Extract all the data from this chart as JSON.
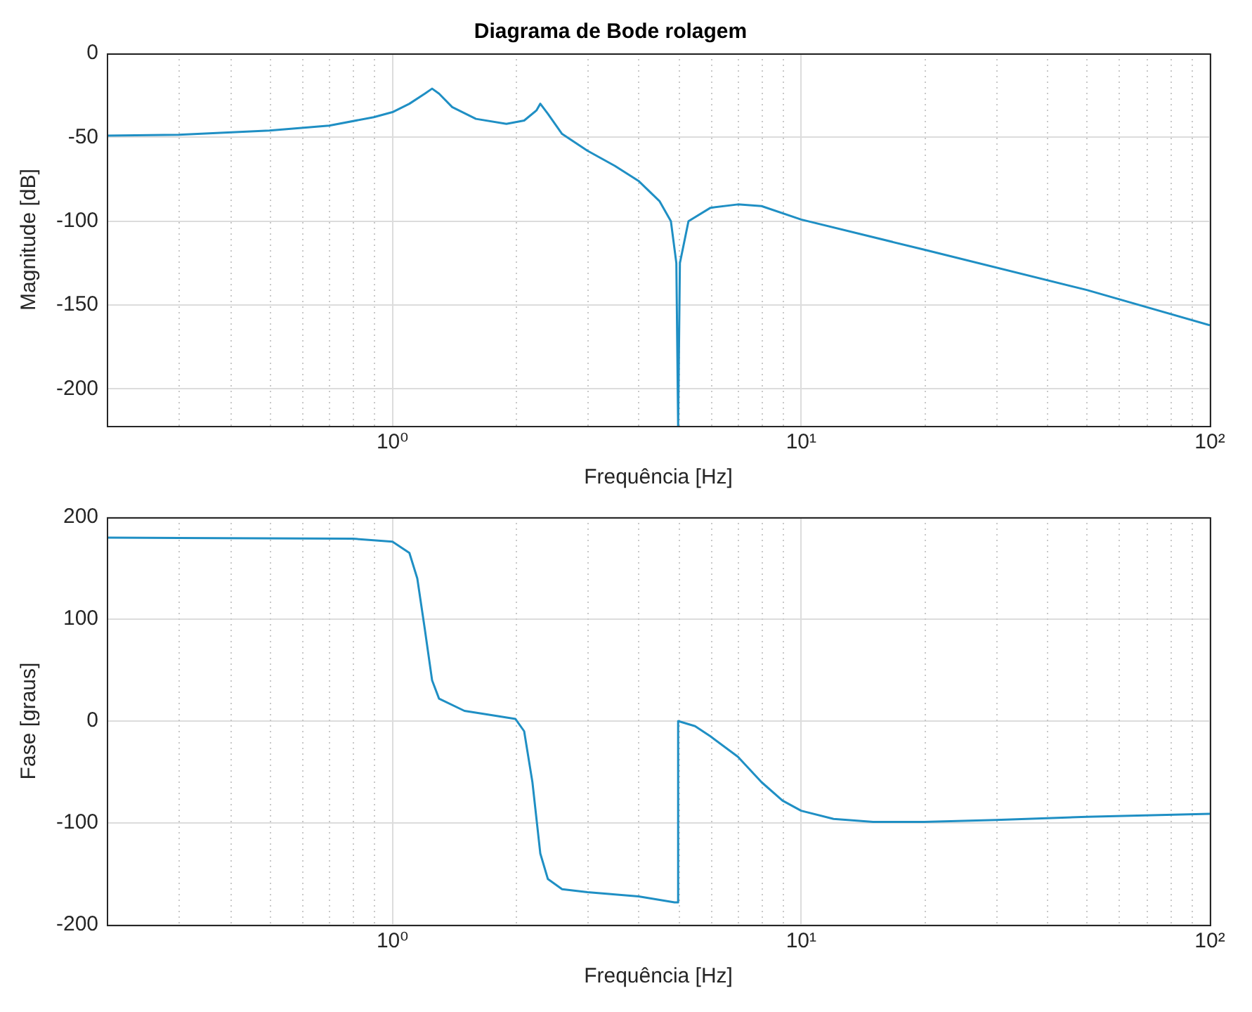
{
  "chart_data": [
    {
      "type": "line",
      "title": "Diagrama de Bode rolagem",
      "xlabel": "Frequência [Hz]",
      "ylabel": "Magnitude [dB]",
      "log": "x",
      "grid": true,
      "legend": false,
      "marker": "none",
      "line_style": "solid",
      "xlim": [
        0.2,
        100
      ],
      "ylim": [
        -222,
        0
      ],
      "xticks": [
        {
          "value": 0.2,
          "label": null
        },
        {
          "value": 0.3,
          "label": null
        },
        {
          "value": 0.4,
          "label": null
        },
        {
          "value": 0.5,
          "label": null
        },
        {
          "value": 0.6,
          "label": null
        },
        {
          "value": 0.7,
          "label": null
        },
        {
          "value": 0.8,
          "label": null
        },
        {
          "value": 0.9,
          "label": null
        },
        {
          "value": 1,
          "label": "10⁰"
        },
        {
          "value": 2,
          "label": null
        },
        {
          "value": 3,
          "label": null
        },
        {
          "value": 4,
          "label": null
        },
        {
          "value": 5,
          "label": null
        },
        {
          "value": 6,
          "label": null
        },
        {
          "value": 7,
          "label": null
        },
        {
          "value": 8,
          "label": null
        },
        {
          "value": 9,
          "label": null
        },
        {
          "value": 10,
          "label": "10¹"
        },
        {
          "value": 20,
          "label": null
        },
        {
          "value": 30,
          "label": null
        },
        {
          "value": 40,
          "label": null
        },
        {
          "value": 50,
          "label": null
        },
        {
          "value": 60,
          "label": null
        },
        {
          "value": 70,
          "label": null
        },
        {
          "value": 80,
          "label": null
        },
        {
          "value": 90,
          "label": null
        },
        {
          "value": 100,
          "label": "10²"
        }
      ],
      "yticks": [
        0,
        -50,
        -100,
        -150,
        -200
      ],
      "series": [
        {
          "color": "#1f8fc4",
          "x": [
            0.2,
            0.3,
            0.5,
            0.7,
            0.9,
            1.0,
            1.1,
            1.2,
            1.25,
            1.3,
            1.4,
            1.6,
            1.9,
            2.1,
            2.25,
            2.3,
            2.4,
            2.6,
            3,
            3.5,
            4,
            4.5,
            4.8,
            4.95,
            5.0,
            5.05,
            5.3,
            6,
            7,
            8,
            10,
            20,
            50,
            100
          ],
          "values": [
            -49,
            -48.5,
            -46,
            -43,
            -38,
            -35,
            -30,
            -24,
            -21,
            -24,
            -32,
            -39,
            -42,
            -40,
            -34,
            -30,
            -36,
            -48,
            -58,
            -67,
            -76,
            -88,
            -100,
            -125,
            -222,
            -125,
            -100,
            -92,
            -90,
            -91,
            -99,
            -117,
            -141,
            -162
          ]
        }
      ]
    },
    {
      "type": "line",
      "xlabel": "Frequência [Hz]",
      "ylabel": "Fase [graus]",
      "log": "x",
      "grid": true,
      "legend": false,
      "marker": "none",
      "line_style": "solid",
      "xlim": [
        0.2,
        100
      ],
      "ylim": [
        -200,
        200
      ],
      "xticks": [
        {
          "value": 0.2,
          "label": null
        },
        {
          "value": 0.3,
          "label": null
        },
        {
          "value": 0.4,
          "label": null
        },
        {
          "value": 0.5,
          "label": null
        },
        {
          "value": 0.6,
          "label": null
        },
        {
          "value": 0.7,
          "label": null
        },
        {
          "value": 0.8,
          "label": null
        },
        {
          "value": 0.9,
          "label": null
        },
        {
          "value": 1,
          "label": "10⁰"
        },
        {
          "value": 2,
          "label": null
        },
        {
          "value": 3,
          "label": null
        },
        {
          "value": 4,
          "label": null
        },
        {
          "value": 5,
          "label": null
        },
        {
          "value": 6,
          "label": null
        },
        {
          "value": 7,
          "label": null
        },
        {
          "value": 8,
          "label": null
        },
        {
          "value": 9,
          "label": null
        },
        {
          "value": 10,
          "label": "10¹"
        },
        {
          "value": 20,
          "label": null
        },
        {
          "value": 30,
          "label": null
        },
        {
          "value": 40,
          "label": null
        },
        {
          "value": 50,
          "label": null
        },
        {
          "value": 60,
          "label": null
        },
        {
          "value": 70,
          "label": null
        },
        {
          "value": 80,
          "label": null
        },
        {
          "value": 90,
          "label": null
        },
        {
          "value": 100,
          "label": "10²"
        }
      ],
      "yticks": [
        -200,
        -100,
        0,
        100,
        200
      ],
      "series": [
        {
          "color": "#1f8fc4",
          "x": [
            0.2,
            0.8,
            1.0,
            1.1,
            1.15,
            1.2,
            1.25,
            1.3,
            1.5,
            1.8,
            2.0,
            2.1,
            2.2,
            2.3,
            2.4,
            2.6,
            3,
            4,
            4.9,
            5.0,
            5.0,
            5.5,
            6,
            7,
            8,
            9,
            10,
            12,
            15,
            20,
            30,
            50,
            100
          ],
          "values": [
            180,
            179,
            176,
            165,
            140,
            90,
            40,
            22,
            10,
            5,
            2,
            -10,
            -60,
            -130,
            -155,
            -165,
            -168,
            -172,
            -178,
            -178,
            0,
            -5,
            -15,
            -35,
            -60,
            -78,
            -88,
            -96,
            -99,
            -99,
            -97,
            -94,
            -91
          ]
        }
      ]
    }
  ]
}
